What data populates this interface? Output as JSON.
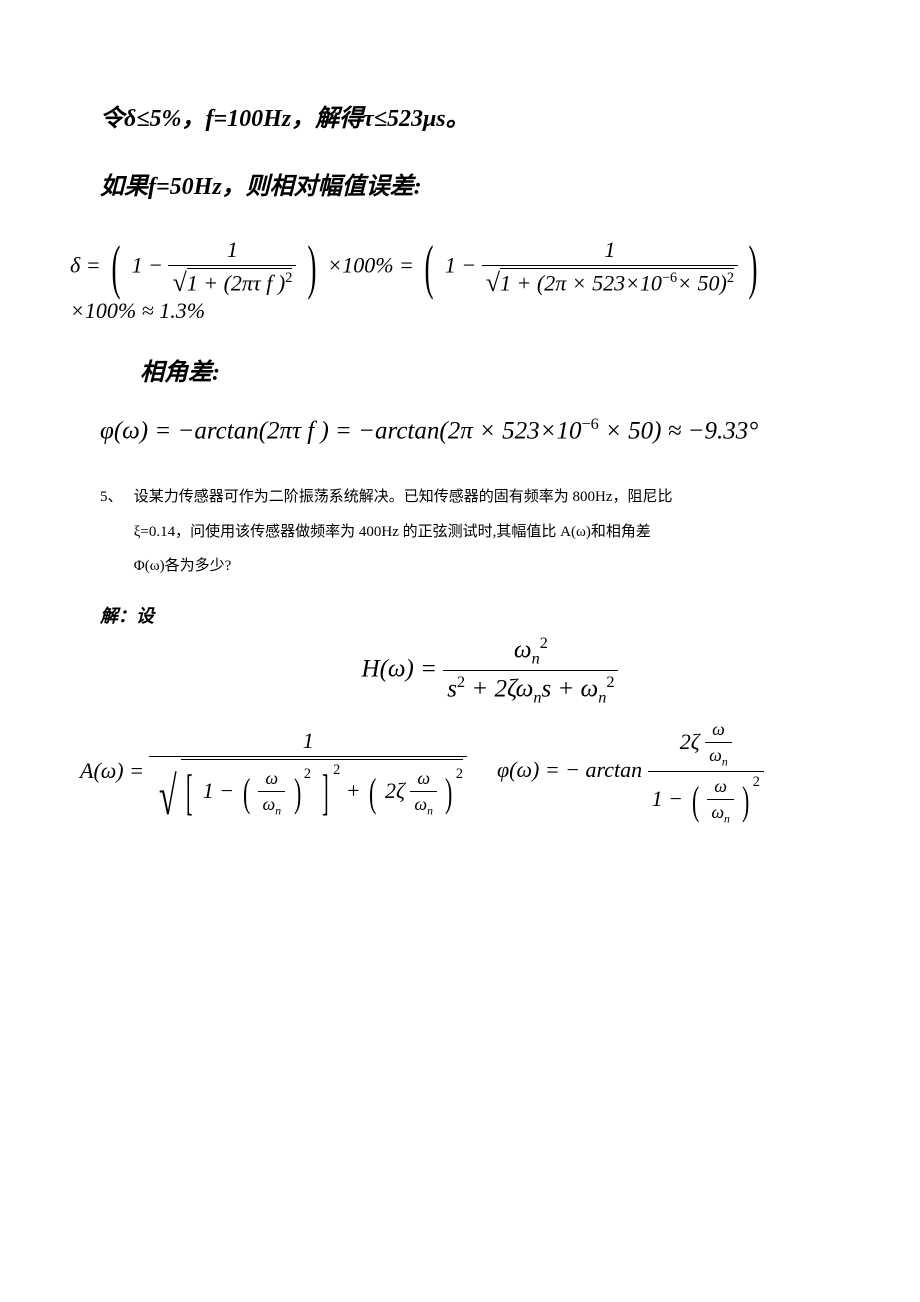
{
  "line1": "令δ≤5%，f=100Hz，解得τ≤523μs。",
  "line2": "如果f=50Hz，则相对幅值误差:",
  "angle_diff_label": "相角差:",
  "delta_formula": {
    "lhs": "δ",
    "eq1": "=",
    "part1_open": "(",
    "part1_one": "1 −",
    "part1_num": "1",
    "part1_den_sqrt": "√",
    "part1_den_inner": "1 + (2πτ f )",
    "part1_den_exp": "2",
    "part1_close": ")",
    "times100_1": "×100% =",
    "part2_one": "1 −",
    "part2_num": "1",
    "part2_den_inner_a": "1 + (2π × 523×10",
    "part2_den_exp_a": "−6",
    "part2_den_inner_b": "× 50)",
    "part2_den_exp_b": "2",
    "times100_2": "×100% ≈ 1.3%"
  },
  "phi_formula": {
    "text_a": "φ(ω) = −arctan(2πτ f ) = −arctan(2π × 523×10",
    "exp": "−6",
    "text_b": " × 50) ≈ −9.33°"
  },
  "problem": {
    "number": "5、",
    "body_l1": "设某力传感器可作为二阶振荡系统解决。已知传感器的固有频率为 800Hz，阻尼比",
    "body_l2": "ξ=0.14，问使用该传感器做频率为 400Hz 的正弦测试时,其幅值比 A(ω)和相角差",
    "body_l3": "Φ(ω)各为多少?"
  },
  "solution_label": "解：设",
  "H_formula": {
    "lhs": "H(ω) =",
    "num_a": "ω",
    "num_sub": "n",
    "num_exp": "2",
    "den_a": "s",
    "den_exp1": "2",
    "den_b": " + 2ζω",
    "den_sub1": "n",
    "den_c": "s + ω",
    "den_sub2": "n",
    "den_exp2": "2"
  },
  "A_formula": {
    "lhs": "A(ω) =",
    "num": "1",
    "one": "1 −",
    "omega": "ω",
    "omega_n": "ω",
    "n": "n",
    "exp2": "2",
    "plus": "+",
    "two_zeta": "2ζ"
  },
  "phi2_formula": {
    "lhs": "φ(ω) = − arctan",
    "two_zeta": "2ζ",
    "omega": "ω",
    "omega_n": "ω",
    "n": "n",
    "one": "1 −",
    "exp2": "2"
  }
}
